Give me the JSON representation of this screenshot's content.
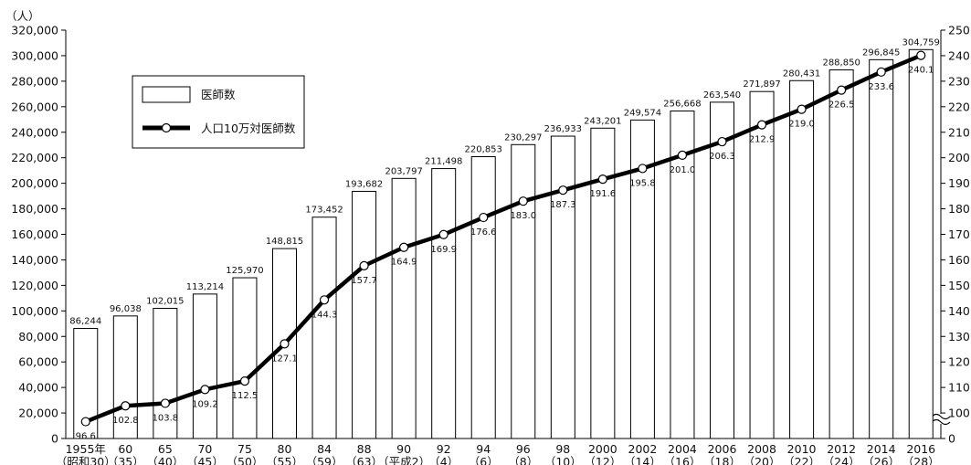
{
  "chart_data": {
    "type": "bar",
    "title": "",
    "y_unit_label": "（人）",
    "ylim_left": [
      0,
      320000
    ],
    "yticks_left": [
      "0",
      "20,000",
      "40,000",
      "60,000",
      "80,000",
      "100,000",
      "120,000",
      "140,000",
      "160,000",
      "180,000",
      "200,000",
      "220,000",
      "240,000",
      "260,000",
      "280,000",
      "300,000",
      "320,000"
    ],
    "ylim_right": [
      0,
      250
    ],
    "yticks_right": [
      "0",
      "100",
      "110",
      "120",
      "130",
      "140",
      "150",
      "160",
      "170",
      "180",
      "190",
      "200",
      "210",
      "220",
      "230",
      "240",
      "250"
    ],
    "right_axis_broken": true,
    "categories": [
      "1955年",
      "60",
      "65",
      "70",
      "75",
      "80",
      "84",
      "88",
      "90",
      "92",
      "94",
      "96",
      "98",
      "2000",
      "2002",
      "2004",
      "2006",
      "2008",
      "2010",
      "2012",
      "2014",
      "2016"
    ],
    "categories_sub": [
      "（昭和30）",
      "（35）",
      "（40）",
      "（45）",
      "（50）",
      "（55）",
      "（59）",
      "（63）",
      "（平成2）",
      "（4）",
      "（6）",
      "（8）",
      "（10）",
      "（12）",
      "（14）",
      "（16）",
      "（18）",
      "（20）",
      "（22）",
      "（24）",
      "（26）",
      "（28）"
    ],
    "series": [
      {
        "name": "医師数",
        "type": "bar",
        "axis": "left",
        "values": [
          86244,
          96038,
          102015,
          113214,
          125970,
          148815,
          173452,
          193682,
          203797,
          211498,
          220853,
          230297,
          236933,
          243201,
          249574,
          256668,
          263540,
          271897,
          280431,
          288850,
          296845,
          304759
        ],
        "labels": [
          "86,244",
          "96,038",
          "102,015",
          "113,214",
          "125,970",
          "148,815",
          "173,452",
          "193,682",
          "203,797",
          "211,498",
          "220,853",
          "230,297",
          "236,933",
          "243,201",
          "249,574",
          "256,668",
          "263,540",
          "271,897",
          "280,431",
          "288,850",
          "296,845",
          "304,759"
        ]
      },
      {
        "name": "人口10万対医師数",
        "type": "line",
        "axis": "right",
        "values": [
          96.6,
          102.8,
          103.8,
          109.2,
          112.5,
          127.1,
          144.3,
          157.7,
          164.9,
          169.9,
          176.6,
          183.0,
          187.3,
          191.6,
          195.8,
          201.0,
          206.3,
          212.9,
          219.0,
          226.5,
          233.6,
          240.1
        ],
        "labels": [
          "96.6",
          "102.8",
          "103.8",
          "109.2",
          "112.5",
          "127.1",
          "144.3",
          "157.7",
          "164.9",
          "169.9",
          "176.6",
          "183.0",
          "187.3",
          "191.6",
          "195.8",
          "201.0",
          "206.3",
          "212.9",
          "219.0",
          "226.5",
          "233.6",
          "240.1"
        ]
      }
    ],
    "legend": {
      "placement": "top-left",
      "bar_label": "医師数",
      "line_label": "人口10万対医師数"
    },
    "grid": false
  }
}
